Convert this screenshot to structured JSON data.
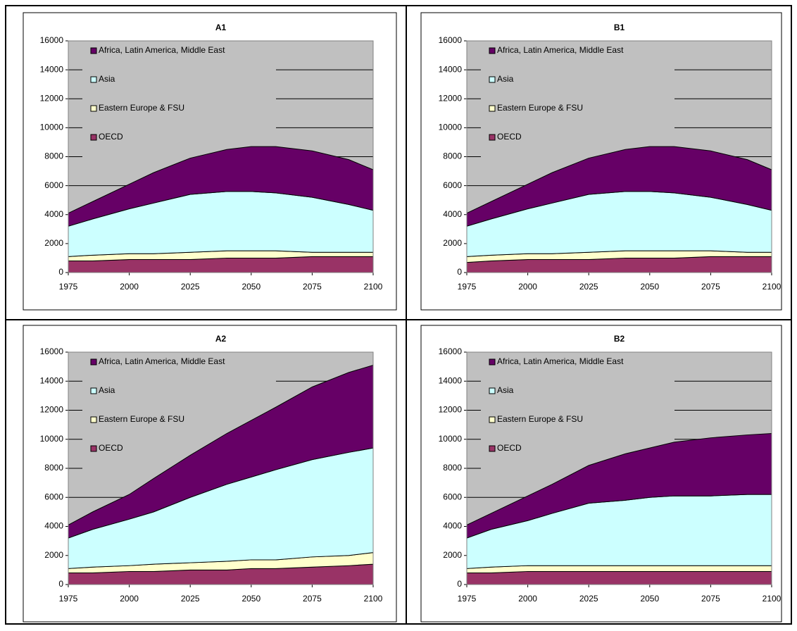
{
  "chart_data": [
    {
      "type": "area",
      "stacked": true,
      "title": "A1",
      "x": [
        1975,
        1985,
        2000,
        2010,
        2025,
        2040,
        2050,
        2060,
        2075,
        2090,
        2100
      ],
      "series": [
        {
          "name": "OECD",
          "color": "#993366",
          "values": [
            800,
            800,
            900,
            900,
            900,
            1000,
            1000,
            1000,
            1100,
            1100,
            1100
          ]
        },
        {
          "name": "Eastern Europe & FSU",
          "color": "#ffffcc",
          "values": [
            300,
            400,
            400,
            400,
            500,
            500,
            500,
            500,
            300,
            300,
            300
          ]
        },
        {
          "name": "Asia",
          "color": "#ccffff",
          "values": [
            2100,
            2500,
            3100,
            3500,
            4000,
            4100,
            4100,
            4000,
            3800,
            3300,
            2900
          ]
        },
        {
          "name": "Africa, Latin America, Middle East",
          "color": "#660066",
          "values": [
            900,
            1200,
            1700,
            2100,
            2500,
            2900,
            3100,
            3200,
            3200,
            3100,
            2800
          ]
        }
      ],
      "xlim": [
        1975,
        2100
      ],
      "xticks": [
        1975,
        2000,
        2025,
        2050,
        2075,
        2100
      ],
      "ylim": [
        0,
        16000
      ],
      "yticks": [
        0,
        2000,
        4000,
        6000,
        8000,
        10000,
        12000,
        14000,
        16000
      ],
      "grid": true,
      "legend": "top-left",
      "plot_background": "#c0c0c0"
    },
    {
      "type": "area",
      "stacked": true,
      "title": "B1",
      "x": [
        1975,
        1985,
        2000,
        2010,
        2025,
        2040,
        2050,
        2060,
        2075,
        2090,
        2100
      ],
      "series": [
        {
          "name": "OECD",
          "color": "#993366",
          "values": [
            700,
            800,
            900,
            900,
            900,
            1000,
            1000,
            1000,
            1100,
            1100,
            1100
          ]
        },
        {
          "name": "Eastern Europe & FSU",
          "color": "#ffffcc",
          "values": [
            400,
            400,
            400,
            400,
            500,
            500,
            500,
            500,
            400,
            300,
            300
          ]
        },
        {
          "name": "Asia",
          "color": "#ccffff",
          "values": [
            2100,
            2500,
            3100,
            3500,
            4000,
            4100,
            4100,
            4000,
            3700,
            3300,
            2900
          ]
        },
        {
          "name": "Africa, Latin America, Middle East",
          "color": "#660066",
          "values": [
            900,
            1200,
            1700,
            2100,
            2500,
            2900,
            3100,
            3200,
            3200,
            3100,
            2800
          ]
        }
      ],
      "xlim": [
        1975,
        2100
      ],
      "xticks": [
        1975,
        2000,
        2025,
        2050,
        2075,
        2100
      ],
      "ylim": [
        0,
        16000
      ],
      "yticks": [
        0,
        2000,
        4000,
        6000,
        8000,
        10000,
        12000,
        14000,
        16000
      ],
      "grid": true,
      "legend": "top-left",
      "plot_background": "#c0c0c0"
    },
    {
      "type": "area",
      "stacked": true,
      "title": "A2",
      "x": [
        1975,
        1985,
        2000,
        2010,
        2025,
        2040,
        2050,
        2060,
        2075,
        2090,
        2100
      ],
      "series": [
        {
          "name": "OECD",
          "color": "#993366",
          "values": [
            800,
            800,
            900,
            900,
            1000,
            1000,
            1100,
            1100,
            1200,
            1300,
            1400
          ]
        },
        {
          "name": "Eastern Europe & FSU",
          "color": "#ffffcc",
          "values": [
            300,
            400,
            400,
            500,
            500,
            600,
            600,
            600,
            700,
            700,
            800
          ]
        },
        {
          "name": "Asia",
          "color": "#ccffff",
          "values": [
            2100,
            2600,
            3200,
            3600,
            4500,
            5300,
            5700,
            6200,
            6700,
            7100,
            7200
          ]
        },
        {
          "name": "Africa, Latin America, Middle East",
          "color": "#660066",
          "values": [
            900,
            1200,
            1700,
            2300,
            2900,
            3500,
            3900,
            4300,
            5000,
            5500,
            5700
          ]
        }
      ],
      "xlim": [
        1975,
        2100
      ],
      "xticks": [
        1975,
        2000,
        2025,
        2050,
        2075,
        2100
      ],
      "ylim": [
        0,
        16000
      ],
      "yticks": [
        0,
        2000,
        4000,
        6000,
        8000,
        10000,
        12000,
        14000,
        16000
      ],
      "grid": true,
      "legend": "top-left",
      "plot_background": "#c0c0c0"
    },
    {
      "type": "area",
      "stacked": true,
      "title": "B2",
      "x": [
        1975,
        1985,
        2000,
        2010,
        2025,
        2040,
        2050,
        2060,
        2075,
        2090,
        2100
      ],
      "series": [
        {
          "name": "OECD",
          "color": "#993366",
          "values": [
            800,
            800,
            900,
            900,
            900,
            900,
            900,
            900,
            900,
            900,
            900
          ]
        },
        {
          "name": "Eastern Europe & FSU",
          "color": "#ffffcc",
          "values": [
            300,
            400,
            400,
            400,
            400,
            400,
            400,
            400,
            400,
            400,
            400
          ]
        },
        {
          "name": "Asia",
          "color": "#ccffff",
          "values": [
            2100,
            2600,
            3100,
            3600,
            4300,
            4500,
            4700,
            4800,
            4800,
            4900,
            4900
          ]
        },
        {
          "name": "Africa, Latin America, Middle East",
          "color": "#660066",
          "values": [
            900,
            1100,
            1700,
            2000,
            2600,
            3200,
            3400,
            3700,
            4000,
            4100,
            4200
          ]
        }
      ],
      "xlim": [
        1975,
        2100
      ],
      "xticks": [
        1975,
        2000,
        2025,
        2050,
        2075,
        2100
      ],
      "ylim": [
        0,
        16000
      ],
      "yticks": [
        0,
        2000,
        4000,
        6000,
        8000,
        10000,
        12000,
        14000,
        16000
      ],
      "grid": true,
      "legend": "top-left",
      "plot_background": "#c0c0c0"
    }
  ]
}
